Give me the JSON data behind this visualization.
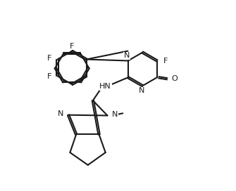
{
  "bg": "#ffffff",
  "lc": "#1a1a1a",
  "lw": 1.5,
  "fs": 8.0,
  "xlim": [
    0.0,
    7.0
  ],
  "ylim": [
    1.2,
    8.0
  ]
}
